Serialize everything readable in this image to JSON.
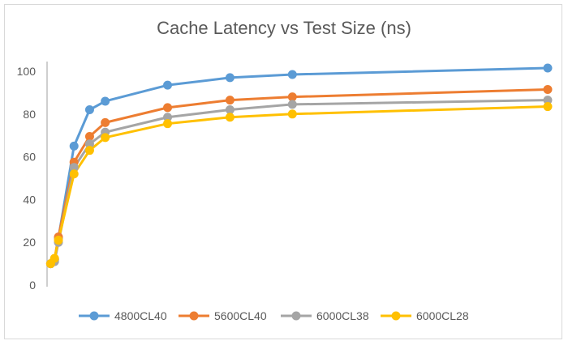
{
  "chart_data": {
    "type": "line",
    "title": "Cache Latency vs Test Size (ns)",
    "xlabel": "",
    "ylabel": "",
    "x": [
      1,
      3,
      5,
      13,
      21,
      29,
      61,
      93,
      125,
      256
    ],
    "ylim": [
      0,
      100
    ],
    "yticks": [
      0,
      20,
      40,
      60,
      80,
      100
    ],
    "grid": false,
    "legend": "bottom",
    "series": [
      {
        "name": "4800CL40",
        "color": "#5b9bd5",
        "values": [
          10,
          12,
          22,
          65,
          82,
          86,
          93.5,
          97,
          98.5,
          101.5
        ]
      },
      {
        "name": "5600CL40",
        "color": "#ed7d31",
        "values": [
          10,
          12,
          22.5,
          57.5,
          69.5,
          76,
          83,
          86.5,
          88,
          91.5
        ]
      },
      {
        "name": "6000CL38",
        "color": "#a5a5a5",
        "values": [
          10,
          11,
          20,
          55,
          66,
          71.5,
          78.5,
          82,
          84.5,
          86.5
        ]
      },
      {
        "name": "6000CL28",
        "color": "#ffc000",
        "values": [
          10,
          12.5,
          21,
          52,
          63,
          69,
          75.5,
          78.5,
          80,
          83.5
        ]
      }
    ]
  }
}
